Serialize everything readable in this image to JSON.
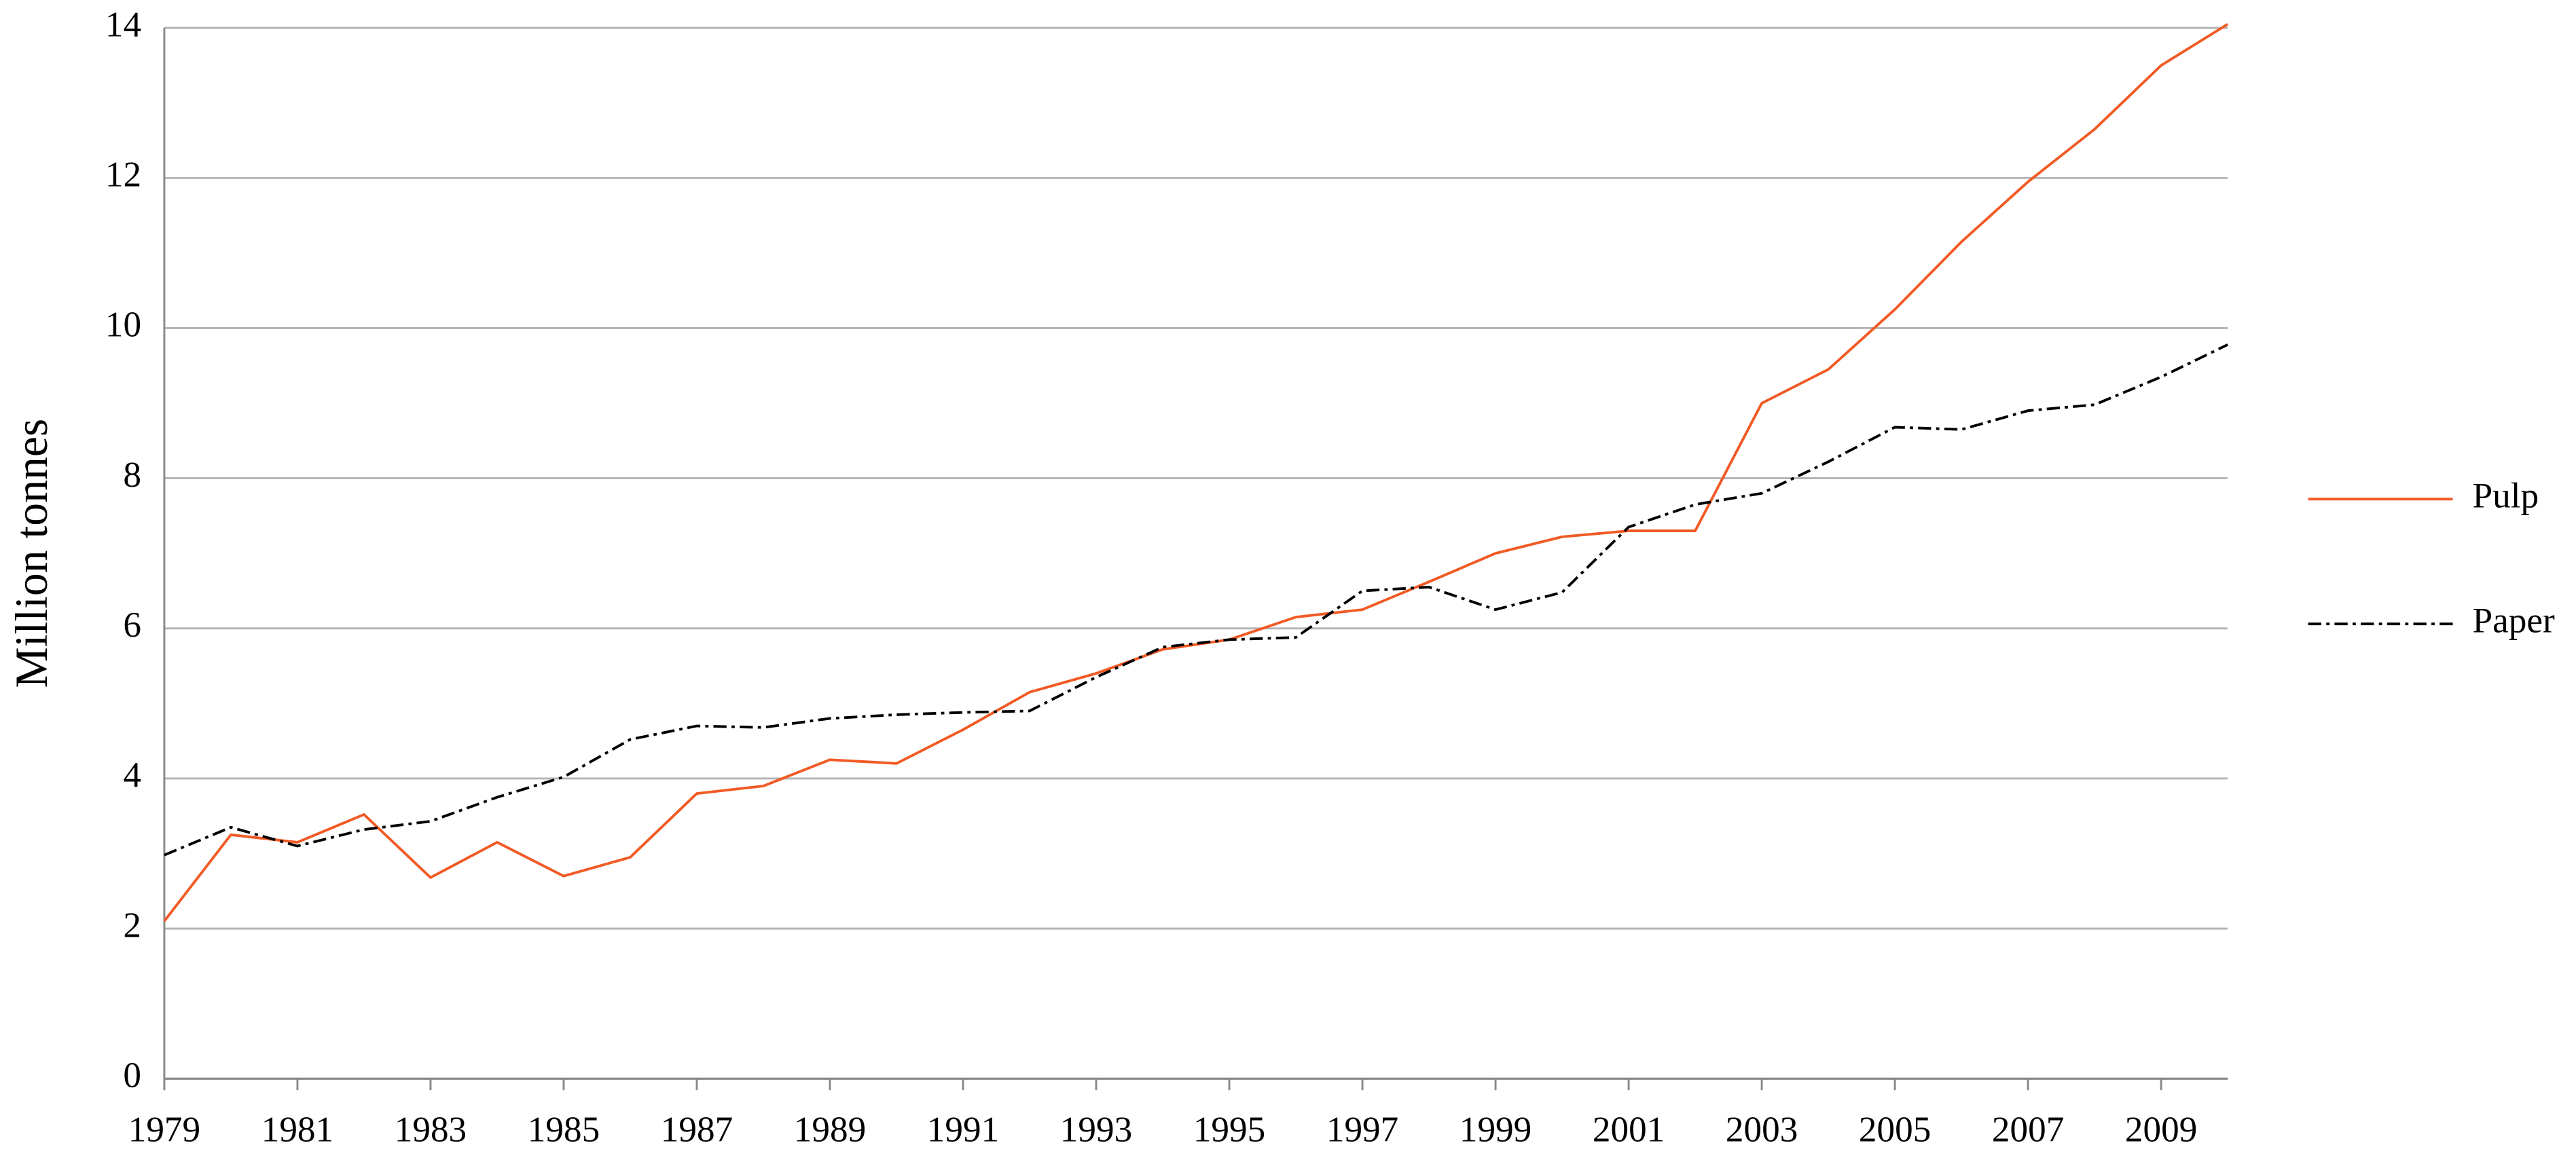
{
  "chart_data": {
    "type": "line",
    "y_label": "Million tonnes",
    "x": [
      1979,
      1980,
      1981,
      1982,
      1983,
      1984,
      1985,
      1986,
      1987,
      1988,
      1989,
      1990,
      1991,
      1992,
      1993,
      1994,
      1995,
      1996,
      1997,
      1998,
      1999,
      2000,
      2001,
      2002,
      2003,
      2004,
      2005,
      2006,
      2007,
      2008,
      2009,
      2010
    ],
    "series": [
      {
        "name": "Pulp",
        "color": "#f15a24",
        "dash": "none",
        "values": [
          2.1,
          3.25,
          3.15,
          3.52,
          2.68,
          3.15,
          2.7,
          2.95,
          3.8,
          3.9,
          4.25,
          4.2,
          4.65,
          5.15,
          5.4,
          5.72,
          5.85,
          6.15,
          6.25,
          6.62,
          7.0,
          7.22,
          7.3,
          7.3,
          9.0,
          9.45,
          10.25,
          11.15,
          11.95,
          12.65,
          13.5,
          14.05
        ]
      },
      {
        "name": "Paper",
        "color": "#000000",
        "dash": "dashdot",
        "values": [
          2.98,
          3.35,
          3.1,
          3.32,
          3.43,
          3.75,
          4.02,
          4.52,
          4.7,
          4.68,
          4.8,
          4.85,
          4.88,
          4.9,
          5.35,
          5.75,
          5.85,
          5.88,
          6.5,
          6.55,
          6.25,
          6.48,
          7.35,
          7.65,
          7.8,
          8.22,
          8.68,
          8.65,
          8.9,
          8.98,
          9.35,
          9.78
        ]
      }
    ],
    "xlim": [
      1979,
      2010
    ],
    "xticks": [
      1979,
      1981,
      1983,
      1985,
      1987,
      1989,
      1991,
      1993,
      1995,
      1997,
      1999,
      2001,
      2003,
      2005,
      2007,
      2009
    ],
    "ylim": [
      0,
      14
    ],
    "yticks": [
      0,
      2,
      4,
      6,
      8,
      10,
      12,
      14
    ],
    "grid": true,
    "legend": "right"
  }
}
